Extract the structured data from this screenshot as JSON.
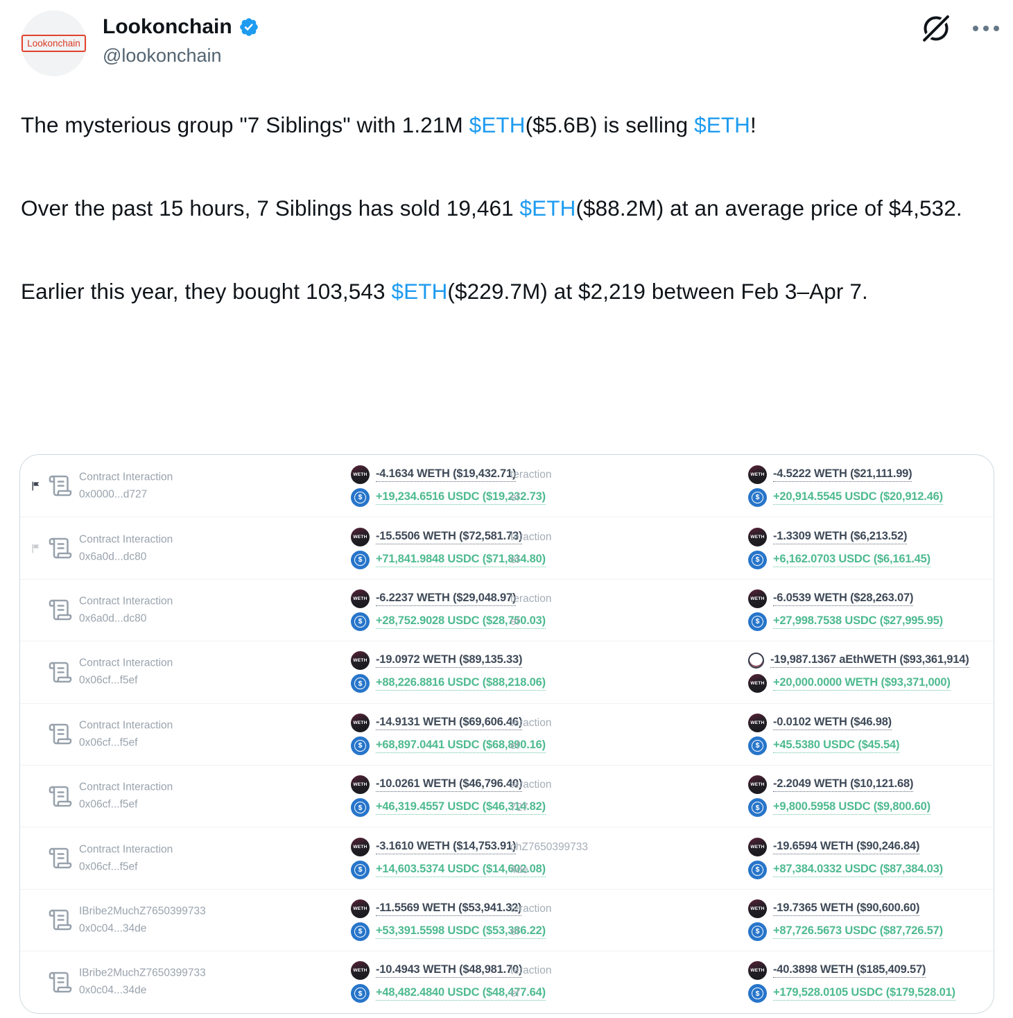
{
  "colors": {
    "link_blue": "#1d9bf0",
    "text_dark": "#0f1419",
    "handle_gray": "#536471",
    "amount_dark": "#3f4a58",
    "amount_green": "#4eba90",
    "usdc_blue": "#2775ca",
    "card_border": "#cfd9de",
    "avatar_logo_red": "#d93a24"
  },
  "header": {
    "avatar_label": "Lookonchain",
    "display_name": "Lookonchain",
    "handle": "@lookonchain",
    "verified_badge": "verified",
    "grok_icon": "grok-slashed-circle",
    "more_icon": "ellipsis"
  },
  "icons": {
    "weth_label": "WETH",
    "usdc_symbol": "$"
  },
  "tweet": {
    "paragraphs": [
      {
        "segments": [
          {
            "text": "The mysterious group \"7 Siblings\" with 1.21M ",
            "link": false
          },
          {
            "text": "$ETH",
            "link": true
          },
          {
            "text": "($5.6B) is selling ",
            "link": false
          },
          {
            "text": "$ETH",
            "link": true
          },
          {
            "text": "!",
            "link": false
          }
        ]
      },
      {
        "segments": [
          {
            "text": "Over the past 15 hours, 7 Siblings has sold 19,461 ",
            "link": false
          },
          {
            "text": "$ETH",
            "link": true
          },
          {
            "text": "($88.2M) at an average price of $4,532.",
            "link": false
          }
        ]
      },
      {
        "segments": [
          {
            "text": "Earlier this year, they bought 103,543 ",
            "link": false
          },
          {
            "text": "$ETH",
            "link": true
          },
          {
            "text": "($229.7M) at $2,219 between Feb 3–Apr 7.",
            "link": false
          }
        ]
      }
    ]
  },
  "card": {
    "rows": [
      {
        "flag": "dark",
        "left": {
          "title": "Contract Interaction",
          "address": "0x0000...d727"
        },
        "mid": {
          "line1": "-4.1634 WETH ($19,432.71)",
          "line2": "+19,234.6516 USDC ($19,232.73)"
        },
        "partial": {
          "line1": "teraction",
          "line2": "ef"
        },
        "right": {
          "line1": "-4.5222 WETH ($21,111.99)",
          "line2": "+20,914.5545 USDC ($20,912.46)",
          "icon1": "weth",
          "icon2": "usdc"
        }
      },
      {
        "flag": "faint",
        "left": {
          "title": "Contract Interaction",
          "address": "0x6a0d...dc80"
        },
        "mid": {
          "line1": "-15.5506 WETH ($72,581.73)",
          "line2": "+71,841.9848 USDC ($71,834.80)"
        },
        "partial": {
          "line1": "teraction",
          "line2": "ef"
        },
        "right": {
          "line1": "-1.3309 WETH ($6,213.52)",
          "line2": "+6,162.0703 USDC ($6,161.45)",
          "icon1": "weth",
          "icon2": "usdc"
        }
      },
      {
        "flag": "none",
        "left": {
          "title": "Contract Interaction",
          "address": "0x6a0d...dc80"
        },
        "mid": {
          "line1": "-6.2237 WETH ($29,048.97)",
          "line2": "+28,752.9028 USDC ($28,750.03)"
        },
        "partial": {
          "line1": "teraction",
          "line2": "ef"
        },
        "right": {
          "line1": "-6.0539 WETH ($28,263.07)",
          "line2": "+27,998.7538 USDC ($27,995.95)",
          "icon1": "weth",
          "icon2": "usdc"
        }
      },
      {
        "flag": "none",
        "left": {
          "title": "Contract Interaction",
          "address": "0x06cf...f5ef"
        },
        "mid": {
          "line1": "-19.0972 WETH ($89,135.33)",
          "line2": "+88,226.8816 USDC ($88,218.06)"
        },
        "partial": {
          "line1": "",
          "line2": ""
        },
        "right": {
          "line1": "-19,987.1367 aEthWETH ($93,361,914)",
          "line2": "+20,000.0000 WETH ($93,371,000)",
          "icon1": "aethweth",
          "icon2": "weth"
        }
      },
      {
        "flag": "none",
        "left": {
          "title": "Contract Interaction",
          "address": "0x06cf...f5ef"
        },
        "mid": {
          "line1": "-14.9131 WETH ($69,606.46)",
          "line2": "+68,897.0441 USDC ($68,890.16)"
        },
        "partial": {
          "line1": "teraction",
          "line2": "ef"
        },
        "right": {
          "line1": "-0.0102 WETH ($46.98)",
          "line2": "+45.5380 USDC ($45.54)",
          "icon1": "weth",
          "icon2": "usdc"
        }
      },
      {
        "flag": "none",
        "left": {
          "title": "Contract Interaction",
          "address": "0x06cf...f5ef"
        },
        "mid": {
          "line1": "-10.0261 WETH ($46,796.40)",
          "line2": "+46,319.4557 USDC ($46,314.82)"
        },
        "partial": {
          "line1": "teraction",
          "line2": "727"
        },
        "right": {
          "line1": "-2.2049 WETH ($10,121.68)",
          "line2": "+9,800.5958 USDC ($9,800.60)",
          "icon1": "weth",
          "icon2": "usdc"
        }
      },
      {
        "flag": "none",
        "left": {
          "title": "Contract Interaction",
          "address": "0x06cf...f5ef"
        },
        "mid": {
          "line1": "-3.1610 WETH ($14,753.91)",
          "line2": "+14,603.5374 USDC ($14,602.08)"
        },
        "partial": {
          "line1": "chZ7650399733",
          "line2": "4de"
        },
        "right": {
          "line1": "-19.6594 WETH ($90,246.84)",
          "line2": "+87,384.0332 USDC ($87,384.03)",
          "icon1": "weth",
          "icon2": "usdc"
        }
      },
      {
        "flag": "none",
        "left": {
          "title": "IBribe2MuchZ7650399733",
          "address": "0x0c04...34de"
        },
        "mid": {
          "line1": "-11.5569 WETH ($53,941.32)",
          "line2": "+53,391.5598 USDC ($53,386.22)"
        },
        "partial": {
          "line1": "teraction",
          "line2": "ef"
        },
        "right": {
          "line1": "-19.7365 WETH ($90,600.60)",
          "line2": "+87,726.5673 USDC ($87,726.57)",
          "icon1": "weth",
          "icon2": "usdc"
        }
      },
      {
        "flag": "none",
        "left": {
          "title": "IBribe2MuchZ7650399733",
          "address": "0x0c04...34de"
        },
        "mid": {
          "line1": "-10.4943 WETH ($48,981.70)",
          "line2": "+48,482.4840 USDC ($48,477.64)"
        },
        "partial": {
          "line1": "teraction",
          "line2": "ef"
        },
        "right": {
          "line1": "-40.3898 WETH ($185,409.57)",
          "line2": "+179,528.0105 USDC ($179,528.01)",
          "icon1": "weth",
          "icon2": "usdc"
        }
      }
    ]
  }
}
